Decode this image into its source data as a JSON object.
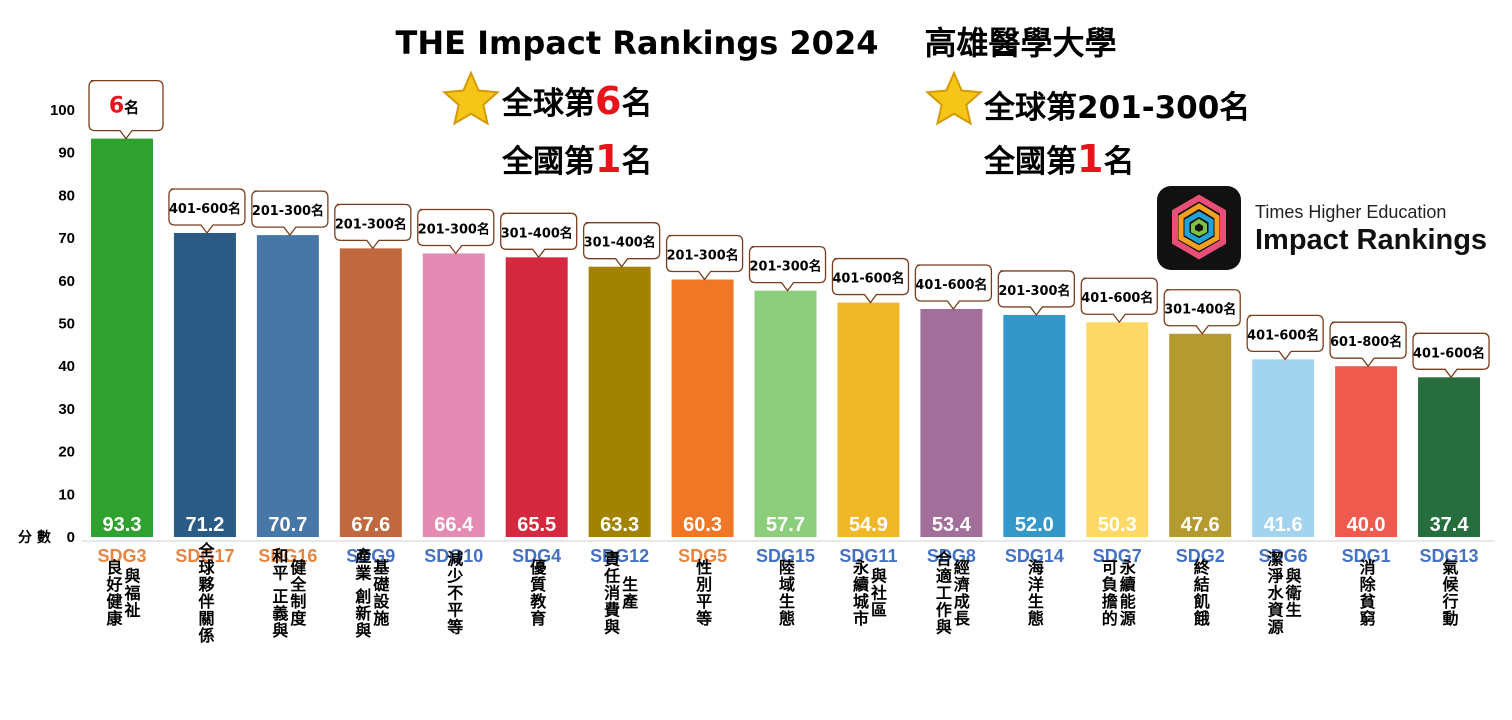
{
  "header": {
    "title": "THE Impact Rankings 2024",
    "university": "高雄醫學大學"
  },
  "highlights": [
    {
      "sdg_number": "3",
      "sdg_label": "良好\n健康與福祉",
      "color": "#4c9f38",
      "global_prefix": "全球第",
      "global_rank": "6",
      "global_suffix": "名",
      "national_prefix": "全國第",
      "national_rank": "1",
      "national_suffix": "名",
      "icon": "heartbeat-icon"
    },
    {
      "sdg_number": "5",
      "sdg_label": "性別平等",
      "color": "#ef402b",
      "global_prefix": "全球第",
      "global_rank": "201-300",
      "global_suffix": "名",
      "national_prefix": "全國第",
      "national_rank": "1",
      "national_suffix": "名",
      "icon": "gender-equality-icon"
    }
  ],
  "brand": {
    "line1": "Times Higher Education",
    "line2": "Impact Rankings"
  },
  "chart_data": {
    "type": "bar",
    "y_unit_label": "分 數",
    "ylim": [
      0,
      100
    ],
    "yticks": [
      0,
      10,
      20,
      30,
      40,
      50,
      60,
      70,
      80,
      90,
      100
    ],
    "categories": [
      "SDG3",
      "SDG17",
      "SDG16",
      "SDG9",
      "SDG10",
      "SDG4",
      "SDG12",
      "SDG5",
      "SDG15",
      "SDG11",
      "SDG8",
      "SDG14",
      "SDG7",
      "SDG2",
      "SDG6",
      "SDG1",
      "SDG13"
    ],
    "values": [
      93.3,
      71.2,
      70.7,
      67.6,
      66.4,
      65.5,
      63.3,
      60.3,
      57.7,
      54.9,
      53.4,
      52.0,
      50.3,
      47.6,
      41.6,
      40.0,
      37.4
    ],
    "value_labels": [
      "93.3",
      "71.2",
      "70.7",
      "67.6",
      "66.4",
      "65.5",
      "63.3",
      "60.3",
      "57.7",
      "54.9",
      "53.4",
      "52.0",
      "50.3",
      "47.6",
      "41.6",
      "40.0",
      "37.4"
    ],
    "rank_labels": [
      "6名",
      "401-600名",
      "201-300名",
      "201-300名",
      "201-300名",
      "301-400名",
      "301-400名",
      "201-300名",
      "201-300名",
      "401-600名",
      "401-600名",
      "201-300名",
      "401-600名",
      "301-400名",
      "401-600名",
      "601-800名",
      "401-600名"
    ],
    "colors": [
      "#2fa12f",
      "#2b5a85",
      "#4677a6",
      "#c0693f",
      "#e48ab3",
      "#d5293f",
      "#a28300",
      "#ef7725",
      "#8cce7b",
      "#f0b728",
      "#a26e9a",
      "#3497c9",
      "#ffd966",
      "#b59b2f",
      "#a3d4ef",
      "#ee5a4e",
      "#276e3e"
    ],
    "category_colors": [
      "#e8853f",
      "#e8853f",
      "#e8853f",
      "#4472c4",
      "#4472c4",
      "#4472c4",
      "#4472c4",
      "#e8853f",
      "#4472c4",
      "#4472c4",
      "#4472c4",
      "#4472c4",
      "#4472c4",
      "#4472c4",
      "#4472c4",
      "#4472c4",
      "#4472c4"
    ],
    "names": [
      [
        "良好健康",
        "與福祉"
      ],
      [
        "全球夥伴關係"
      ],
      [
        "和平 正義與",
        "健全制度"
      ],
      [
        "產業 創新與",
        "基礎設施"
      ],
      [
        "減少不平等"
      ],
      [
        "優質教育"
      ],
      [
        "責任消費與",
        "生產"
      ],
      [
        "性別平等"
      ],
      [
        "陸域生態"
      ],
      [
        "永續城市",
        "與社區"
      ],
      [
        "合適工作與",
        "經濟成長"
      ],
      [
        "海洋生態"
      ],
      [
        "可負擔的",
        "永續能源"
      ],
      [
        "終結飢餓"
      ],
      [
        "潔淨水資源",
        "與衛生"
      ],
      [
        "消除貧窮"
      ],
      [
        "氣候行動"
      ]
    ]
  }
}
